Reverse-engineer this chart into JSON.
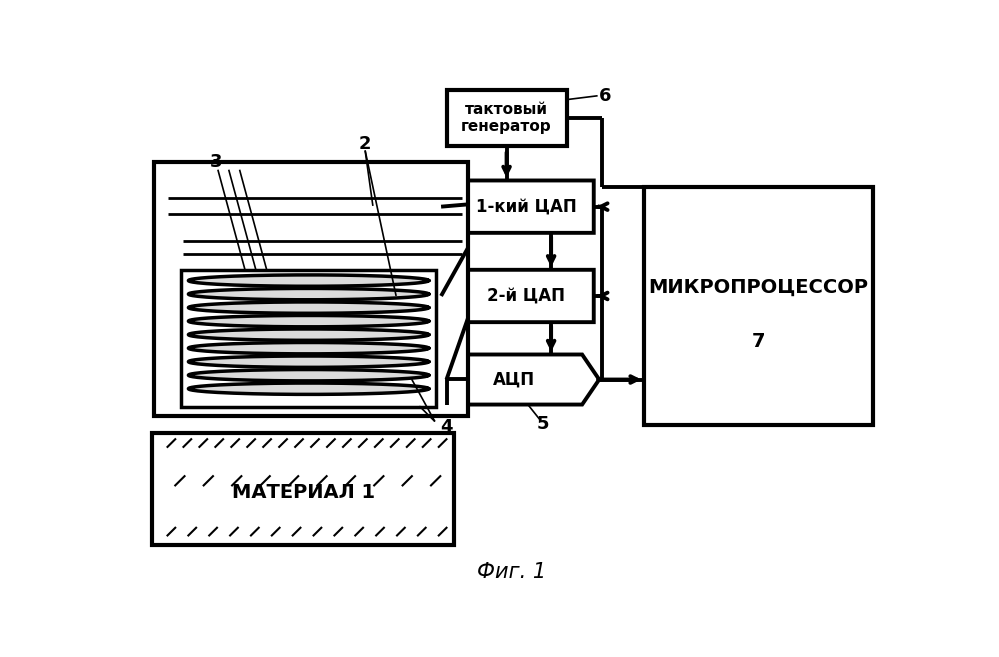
{
  "bg_color": "#ffffff",
  "title_text": "Фиг. 1",
  "takt_label": "тактовый\nгенератор",
  "dac1_label": "1-кий ЦАП",
  "dac2_label": "2-й ЦАП",
  "adc_label": "АЦП",
  "cpu_label": "МИКРОПРОЦЕССОР",
  "material_label": "МАТЕРИАЛ 1",
  "num_2": "2",
  "num_3": "3",
  "num_4": "4",
  "num_5": "5",
  "num_6": "6",
  "num_7": "7"
}
